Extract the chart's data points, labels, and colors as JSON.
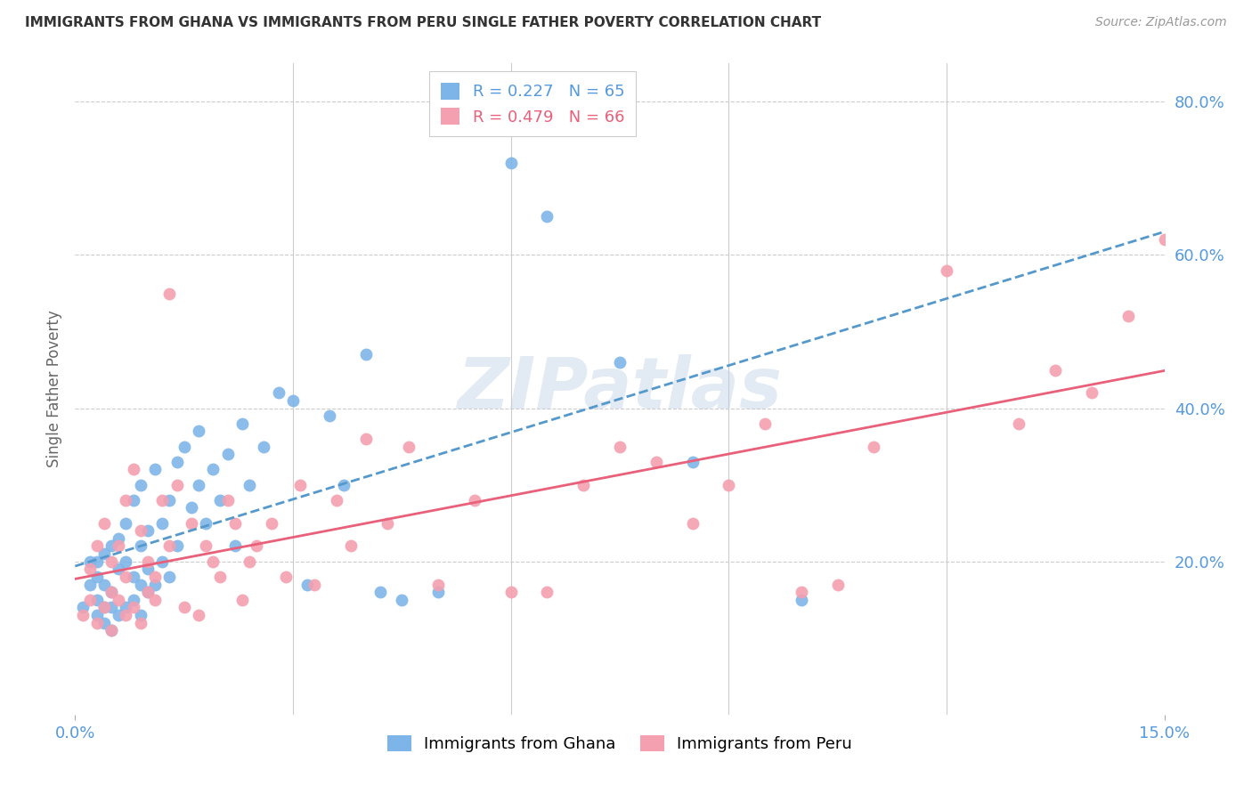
{
  "title": "IMMIGRANTS FROM GHANA VS IMMIGRANTS FROM PERU SINGLE FATHER POVERTY CORRELATION CHART",
  "source": "Source: ZipAtlas.com",
  "ylabel": "Single Father Poverty",
  "xlim": [
    0.0,
    0.15
  ],
  "ylim": [
    0.0,
    0.85
  ],
  "ghana_R": 0.227,
  "ghana_N": 65,
  "peru_R": 0.479,
  "peru_N": 66,
  "ghana_color": "#7eb5e8",
  "peru_color": "#f4a0b0",
  "ghana_line_color": "#5599cc",
  "peru_line_color": "#e8607a",
  "background_color": "#ffffff",
  "grid_color": "#cccccc",
  "axis_label_color": "#5599dd",
  "title_color": "#333333",
  "source_color": "#999999",
  "ylabel_color": "#666666",
  "watermark": "ZIPatlas",
  "ytick_vals": [
    0.2,
    0.4,
    0.6,
    0.8
  ],
  "ytick_labs": [
    "20.0%",
    "40.0%",
    "60.0%",
    "80.0%"
  ],
  "xgrid_vals": [
    0.03,
    0.06,
    0.09,
    0.12
  ],
  "ghana_x": [
    0.001,
    0.002,
    0.002,
    0.003,
    0.003,
    0.003,
    0.003,
    0.004,
    0.004,
    0.004,
    0.004,
    0.005,
    0.005,
    0.005,
    0.005,
    0.006,
    0.006,
    0.006,
    0.007,
    0.007,
    0.007,
    0.008,
    0.008,
    0.008,
    0.009,
    0.009,
    0.009,
    0.009,
    0.01,
    0.01,
    0.01,
    0.011,
    0.011,
    0.012,
    0.012,
    0.013,
    0.013,
    0.014,
    0.014,
    0.015,
    0.016,
    0.017,
    0.017,
    0.018,
    0.019,
    0.02,
    0.021,
    0.022,
    0.023,
    0.024,
    0.026,
    0.028,
    0.03,
    0.032,
    0.035,
    0.037,
    0.04,
    0.042,
    0.045,
    0.05,
    0.06,
    0.065,
    0.075,
    0.085,
    0.1
  ],
  "ghana_y": [
    0.14,
    0.17,
    0.2,
    0.13,
    0.15,
    0.18,
    0.2,
    0.12,
    0.14,
    0.17,
    0.21,
    0.11,
    0.14,
    0.16,
    0.22,
    0.13,
    0.19,
    0.23,
    0.14,
    0.2,
    0.25,
    0.15,
    0.18,
    0.28,
    0.13,
    0.17,
    0.22,
    0.3,
    0.16,
    0.19,
    0.24,
    0.17,
    0.32,
    0.2,
    0.25,
    0.18,
    0.28,
    0.22,
    0.33,
    0.35,
    0.27,
    0.3,
    0.37,
    0.25,
    0.32,
    0.28,
    0.34,
    0.22,
    0.38,
    0.3,
    0.35,
    0.42,
    0.41,
    0.17,
    0.39,
    0.3,
    0.47,
    0.16,
    0.15,
    0.16,
    0.72,
    0.65,
    0.46,
    0.33,
    0.15
  ],
  "peru_x": [
    0.001,
    0.002,
    0.002,
    0.003,
    0.003,
    0.004,
    0.004,
    0.005,
    0.005,
    0.005,
    0.006,
    0.006,
    0.007,
    0.007,
    0.007,
    0.008,
    0.008,
    0.009,
    0.009,
    0.01,
    0.01,
    0.011,
    0.011,
    0.012,
    0.013,
    0.013,
    0.014,
    0.015,
    0.016,
    0.017,
    0.018,
    0.019,
    0.02,
    0.021,
    0.022,
    0.023,
    0.024,
    0.025,
    0.027,
    0.029,
    0.031,
    0.033,
    0.036,
    0.038,
    0.04,
    0.043,
    0.046,
    0.05,
    0.055,
    0.06,
    0.065,
    0.07,
    0.075,
    0.08,
    0.085,
    0.09,
    0.095,
    0.1,
    0.105,
    0.11,
    0.12,
    0.13,
    0.135,
    0.14,
    0.145,
    0.15
  ],
  "peru_y": [
    0.13,
    0.15,
    0.19,
    0.12,
    0.22,
    0.14,
    0.25,
    0.11,
    0.16,
    0.2,
    0.15,
    0.22,
    0.13,
    0.18,
    0.28,
    0.14,
    0.32,
    0.12,
    0.24,
    0.16,
    0.2,
    0.15,
    0.18,
    0.28,
    0.22,
    0.55,
    0.3,
    0.14,
    0.25,
    0.13,
    0.22,
    0.2,
    0.18,
    0.28,
    0.25,
    0.15,
    0.2,
    0.22,
    0.25,
    0.18,
    0.3,
    0.17,
    0.28,
    0.22,
    0.36,
    0.25,
    0.35,
    0.17,
    0.28,
    0.16,
    0.16,
    0.3,
    0.35,
    0.33,
    0.25,
    0.3,
    0.38,
    0.16,
    0.17,
    0.35,
    0.58,
    0.38,
    0.45,
    0.42,
    0.52,
    0.62
  ]
}
